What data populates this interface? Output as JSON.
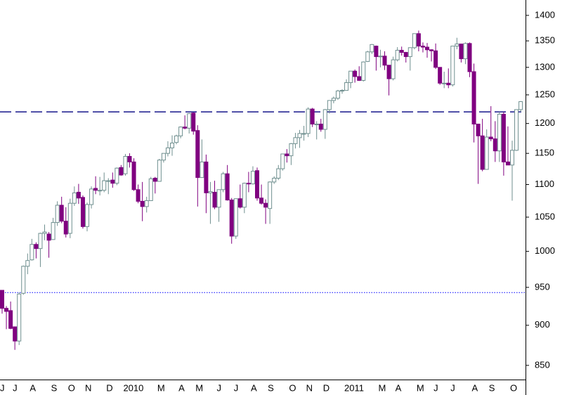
{
  "chart_data": {
    "type": "candlestick",
    "categories": [
      "J",
      null,
      null,
      "J",
      null,
      null,
      null,
      "A",
      null,
      null,
      null,
      null,
      "S",
      null,
      null,
      null,
      "O",
      null,
      null,
      null,
      "N",
      null,
      null,
      null,
      null,
      "D",
      null,
      null,
      null,
      "2010",
      null,
      null,
      null,
      null,
      null,
      null,
      null,
      "M",
      null,
      null,
      null,
      null,
      "A",
      null,
      null,
      null,
      "M",
      null,
      null,
      null,
      null,
      "J",
      null,
      null,
      null,
      "J",
      null,
      null,
      null,
      "A",
      null,
      null,
      null,
      "S",
      null,
      null,
      null,
      null,
      "O",
      null,
      null,
      null,
      "N",
      null,
      null,
      null,
      "D",
      null,
      null,
      null,
      null,
      "2011",
      null,
      null,
      null,
      null,
      null,
      null,
      null,
      "M",
      null,
      null,
      null,
      "A",
      null,
      null,
      null,
      null,
      "M",
      null,
      null,
      null,
      "J",
      null,
      null,
      null,
      "J",
      null,
      null,
      null,
      null,
      "A",
      null,
      null,
      null,
      "S",
      null,
      null,
      null,
      null,
      "O",
      null,
      null
    ],
    "open": [
      946,
      922,
      919,
      898,
      880,
      942,
      979,
      988,
      1010,
      1004,
      1026,
      1025,
      1017,
      1042,
      1068,
      1044,
      1026,
      1071,
      1088,
      1080,
      1036,
      1069,
      1094,
      1091,
      1091,
      1106,
      1107,
      1102,
      1127,
      1117,
      1145,
      1136,
      1092,
      1074,
      1066,
      1075,
      1110,
      1105,
      1139,
      1150,
      1159,
      1168,
      1179,
      1194,
      1192,
      1218,
      1188,
      1111,
      1136,
      1087,
      1088,
      1065,
      1092,
      1117,
      1076,
      1022,
      1078,
      1065,
      1102,
      1101,
      1122,
      1079,
      1071,
      1063,
      1104,
      1110,
      1125,
      1149,
      1146,
      1166,
      1176,
      1183,
      1183,
      1225,
      1199,
      1199,
      1190,
      1224,
      1240,
      1244,
      1257,
      1258,
      1272,
      1293,
      1283,
      1276,
      1311,
      1329,
      1340,
      1320,
      1321,
      1304,
      1279,
      1314,
      1332,
      1328,
      1320,
      1337,
      1364,
      1340,
      1338,
      1333,
      1331,
      1300,
      1271,
      1271,
      1268,
      1340,
      1344,
      1316,
      1345,
      1292,
      1199,
      1179,
      1124,
      1177,
      1174,
      1154,
      1216,
      1136,
      1131,
      1155,
      1224
    ],
    "high": [
      946,
      925,
      931,
      898,
      943,
      980,
      997,
      1018,
      1013,
      1027,
      1039,
      1028,
      1049,
      1074,
      1081,
      1065,
      1078,
      1097,
      1101,
      1083,
      1072,
      1097,
      1113,
      1112,
      1119,
      1110,
      1119,
      1127,
      1131,
      1149,
      1150,
      1142,
      1100,
      1104,
      1081,
      1112,
      1112,
      1141,
      1150,
      1170,
      1180,
      1181,
      1195,
      1214,
      1218,
      1219,
      1197,
      1173,
      1148,
      1104,
      1106,
      1092,
      1120,
      1131,
      1079,
      1078,
      1100,
      1103,
      1120,
      1129,
      1127,
      1100,
      1077,
      1105,
      1113,
      1131,
      1149,
      1157,
      1167,
      1184,
      1189,
      1196,
      1228,
      1227,
      1204,
      1208,
      1225,
      1240,
      1247,
      1259,
      1260,
      1278,
      1293,
      1296,
      1302,
      1311,
      1331,
      1344,
      1341,
      1333,
      1330,
      1304,
      1320,
      1338,
      1339,
      1329,
      1337,
      1364,
      1370,
      1347,
      1346,
      1334,
      1345,
      1300,
      1292,
      1298,
      1340,
      1356,
      1344,
      1347,
      1347,
      1307,
      1199,
      1208,
      1190,
      1230,
      1204,
      1220,
      1220,
      1195,
      1171,
      1224,
      1239
    ],
    "low": [
      915,
      895,
      895,
      869,
      875,
      940,
      968,
      987,
      990,
      978,
      1016,
      991,
      1017,
      1037,
      1041,
      1020,
      1019,
      1067,
      1070,
      1033,
      1029,
      1063,
      1085,
      1083,
      1088,
      1085,
      1095,
      1099,
      1114,
      1114,
      1127,
      1090,
      1071,
      1044,
      1057,
      1075,
      1086,
      1105,
      1135,
      1145,
      1146,
      1165,
      1175,
      1190,
      1183,
      1181,
      1066,
      1111,
      1056,
      1040,
      1062,
      1043,
      1088,
      1075,
      1011,
      1018,
      1063,
      1056,
      1088,
      1100,
      1075,
      1069,
      1040,
      1040,
      1101,
      1107,
      1122,
      1135,
      1131,
      1158,
      1159,
      1171,
      1177,
      1194,
      1173,
      1186,
      1174,
      1217,
      1235,
      1241,
      1252,
      1258,
      1262,
      1272,
      1275,
      1274,
      1310,
      1325,
      1294,
      1300,
      1295,
      1249,
      1276,
      1311,
      1322,
      1309,
      1294,
      1334,
      1330,
      1328,
      1318,
      1311,
      1297,
      1268,
      1262,
      1262,
      1265,
      1334,
      1309,
      1306,
      1282,
      1168,
      1101,
      1121,
      1124,
      1170,
      1136,
      1136,
      1114,
      1131,
      1075,
      1154,
      1220
    ],
    "close": [
      922,
      918,
      896,
      880,
      941,
      979,
      987,
      1010,
      1004,
      1026,
      1028,
      1016,
      1042,
      1068,
      1044,
      1025,
      1071,
      1087,
      1079,
      1036,
      1069,
      1093,
      1091,
      1091,
      1106,
      1106,
      1102,
      1126,
      1115,
      1145,
      1136,
      1092,
      1074,
      1066,
      1075,
      1109,
      1105,
      1139,
      1150,
      1159,
      1167,
      1179,
      1194,
      1192,
      1217,
      1187,
      1111,
      1136,
      1087,
      1089,
      1065,
      1092,
      1117,
      1076,
      1022,
      1078,
      1065,
      1102,
      1101,
      1121,
      1079,
      1071,
      1065,
      1104,
      1110,
      1125,
      1149,
      1146,
      1166,
      1176,
      1183,
      1183,
      1225,
      1199,
      1199,
      1190,
      1224,
      1240,
      1244,
      1257,
      1258,
      1272,
      1293,
      1283,
      1276,
      1310,
      1329,
      1343,
      1320,
      1321,
      1304,
      1279,
      1314,
      1332,
      1328,
      1320,
      1337,
      1364,
      1340,
      1338,
      1333,
      1331,
      1300,
      1271,
      1271,
      1268,
      1340,
      1344,
      1316,
      1345,
      1292,
      1199,
      1179,
      1124,
      1177,
      1174,
      1154,
      1216,
      1136,
      1131,
      1155,
      1224,
      1238
    ],
    "ylim": [
      833,
      1431
    ],
    "yticks": [
      850,
      900,
      950,
      1000,
      1050,
      1100,
      1150,
      1200,
      1250,
      1300,
      1350,
      1400
    ],
    "log_scale": true,
    "up_color": "#ffffff",
    "up_edge_color": "#6f8f8f",
    "down_color": "#800080",
    "reference_lines": [
      {
        "value": 1220,
        "style": "dashed",
        "color": "#000080"
      },
      {
        "value": 943,
        "style": "dotted",
        "color": "#0000ff"
      }
    ]
  }
}
